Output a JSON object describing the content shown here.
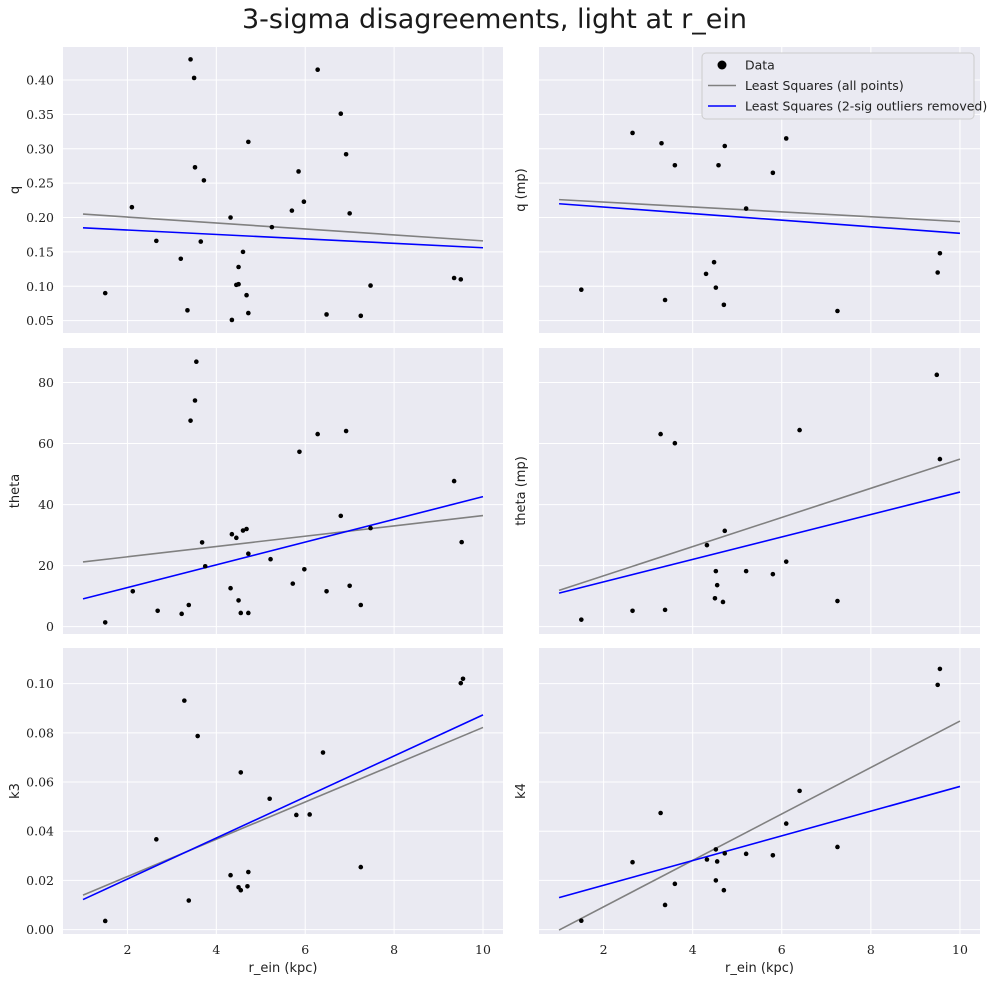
{
  "figure": {
    "title": "3-sigma disagreements, light at r_ein"
  },
  "legend": {
    "entries": [
      {
        "label": "Data",
        "kind": "marker",
        "color": "#000000"
      },
      {
        "label": "Least Squares (all points)",
        "kind": "line",
        "color": "#808080"
      },
      {
        "label": "Least Squares (2-sig outliers removed)",
        "kind": "line",
        "color": "#0000ff"
      }
    ],
    "position": "top-right"
  },
  "colors": {
    "plot_bg": "#eaeaf2",
    "grid": "#ffffff",
    "fit_all": "#808080",
    "fit_clean": "#0000ff",
    "points": "#000000"
  },
  "chart_data": [
    {
      "type": "scatter",
      "ylabel": "q",
      "xlabel": "",
      "grid": true,
      "xlim": [
        0.55,
        10.45
      ],
      "ylim": [
        0.032,
        0.448
      ],
      "xticks": [
        2,
        4,
        6,
        8,
        10
      ],
      "show_xticklabels": false,
      "yticks": [
        0.05,
        0.1,
        0.15,
        0.2,
        0.25,
        0.3,
        0.35,
        0.4
      ],
      "ytick_decimals": 2,
      "show_yticklabels": true,
      "points": [
        [
          1.5,
          0.09
        ],
        [
          2.1,
          0.215
        ],
        [
          2.65,
          0.166
        ],
        [
          3.2,
          0.14
        ],
        [
          3.35,
          0.065
        ],
        [
          3.42,
          0.43
        ],
        [
          3.5,
          0.403
        ],
        [
          3.52,
          0.273
        ],
        [
          3.65,
          0.165
        ],
        [
          3.72,
          0.254
        ],
        [
          4.32,
          0.2
        ],
        [
          4.35,
          0.051
        ],
        [
          4.45,
          0.102
        ],
        [
          4.5,
          0.103
        ],
        [
          4.5,
          0.128
        ],
        [
          4.6,
          0.15
        ],
        [
          4.68,
          0.087
        ],
        [
          4.72,
          0.061
        ],
        [
          4.72,
          0.31
        ],
        [
          5.25,
          0.186
        ],
        [
          5.7,
          0.21
        ],
        [
          5.85,
          0.267
        ],
        [
          5.97,
          0.223
        ],
        [
          6.28,
          0.415
        ],
        [
          6.48,
          0.059
        ],
        [
          6.8,
          0.351
        ],
        [
          6.92,
          0.292
        ],
        [
          7.0,
          0.206
        ],
        [
          7.25,
          0.057
        ],
        [
          7.47,
          0.101
        ],
        [
          9.35,
          0.112
        ],
        [
          9.5,
          0.11
        ]
      ],
      "fit_all": [
        [
          1.0,
          0.205
        ],
        [
          10.0,
          0.166
        ]
      ],
      "fit_clean": [
        [
          1.0,
          0.185
        ],
        [
          10.0,
          0.156
        ]
      ]
    },
    {
      "type": "scatter",
      "ylabel": "q (mp)",
      "xlabel": "",
      "grid": true,
      "xlim": [
        0.55,
        10.45
      ],
      "ylim": [
        0.032,
        0.448
      ],
      "xticks": [
        2,
        4,
        6,
        8,
        10
      ],
      "show_xticklabels": false,
      "yticks": [
        0.05,
        0.1,
        0.15,
        0.2,
        0.25,
        0.3,
        0.35,
        0.4
      ],
      "ytick_decimals": 2,
      "show_yticklabels": false,
      "points": [
        [
          1.5,
          0.095
        ],
        [
          2.65,
          0.323
        ],
        [
          3.3,
          0.308
        ],
        [
          3.38,
          0.08
        ],
        [
          3.6,
          0.276
        ],
        [
          4.3,
          0.118
        ],
        [
          4.48,
          0.135
        ],
        [
          4.52,
          0.098
        ],
        [
          4.58,
          0.276
        ],
        [
          4.7,
          0.073
        ],
        [
          4.72,
          0.304
        ],
        [
          5.2,
          0.213
        ],
        [
          5.8,
          0.265
        ],
        [
          6.1,
          0.315
        ],
        [
          7.25,
          0.064
        ],
        [
          9.5,
          0.12
        ],
        [
          9.55,
          0.148
        ]
      ],
      "fit_all": [
        [
          1.0,
          0.226
        ],
        [
          10.0,
          0.194
        ]
      ],
      "fit_clean": [
        [
          1.0,
          0.22
        ],
        [
          10.0,
          0.177
        ]
      ],
      "show_legend": true
    },
    {
      "type": "scatter",
      "ylabel": "theta",
      "xlabel": "",
      "grid": true,
      "xlim": [
        0.55,
        10.45
      ],
      "ylim": [
        -2.4,
        91.3
      ],
      "xticks": [
        2,
        4,
        6,
        8,
        10
      ],
      "show_xticklabels": false,
      "yticks": [
        0,
        20,
        40,
        60,
        80
      ],
      "ytick_decimals": 0,
      "show_yticklabels": true,
      "points": [
        [
          1.5,
          1.4
        ],
        [
          2.12,
          11.6
        ],
        [
          2.68,
          5.2
        ],
        [
          3.22,
          4.2
        ],
        [
          3.38,
          7.1
        ],
        [
          3.42,
          67.5
        ],
        [
          3.52,
          74.1
        ],
        [
          3.55,
          86.8
        ],
        [
          3.68,
          27.6
        ],
        [
          3.75,
          19.8
        ],
        [
          4.32,
          12.6
        ],
        [
          4.35,
          30.3
        ],
        [
          4.45,
          29.1
        ],
        [
          4.5,
          8.6
        ],
        [
          4.55,
          4.5
        ],
        [
          4.6,
          31.5
        ],
        [
          4.68,
          32.0
        ],
        [
          4.72,
          4.5
        ],
        [
          4.72,
          23.9
        ],
        [
          5.22,
          22.1
        ],
        [
          5.72,
          14.1
        ],
        [
          5.87,
          57.3
        ],
        [
          5.98,
          18.8
        ],
        [
          6.28,
          63.1
        ],
        [
          6.48,
          11.6
        ],
        [
          6.8,
          36.3
        ],
        [
          6.92,
          64.1
        ],
        [
          7.0,
          13.4
        ],
        [
          7.25,
          7.1
        ],
        [
          7.47,
          32.3
        ],
        [
          9.35,
          47.7
        ],
        [
          9.52,
          27.7
        ]
      ],
      "fit_all": [
        [
          1.0,
          21.2
        ],
        [
          10.0,
          36.4
        ]
      ],
      "fit_clean": [
        [
          1.0,
          9.1
        ],
        [
          10.0,
          42.6
        ]
      ]
    },
    {
      "type": "scatter",
      "ylabel": "theta (mp)",
      "xlabel": "",
      "grid": true,
      "xlim": [
        0.55,
        10.45
      ],
      "ylim": [
        -2.4,
        91.3
      ],
      "xticks": [
        2,
        4,
        6,
        8,
        10
      ],
      "show_xticklabels": false,
      "yticks": [
        0,
        20,
        40,
        60,
        80
      ],
      "ytick_decimals": 0,
      "show_yticklabels": false,
      "points": [
        [
          1.5,
          2.3
        ],
        [
          2.65,
          5.2
        ],
        [
          3.28,
          63.1
        ],
        [
          3.38,
          5.5
        ],
        [
          3.6,
          60.1
        ],
        [
          4.32,
          26.7
        ],
        [
          4.5,
          9.3
        ],
        [
          4.52,
          18.2
        ],
        [
          4.55,
          13.6
        ],
        [
          4.68,
          8.1
        ],
        [
          4.72,
          31.4
        ],
        [
          5.2,
          18.2
        ],
        [
          5.8,
          17.2
        ],
        [
          6.1,
          21.3
        ],
        [
          6.4,
          64.4
        ],
        [
          7.25,
          8.4
        ],
        [
          9.48,
          82.5
        ],
        [
          9.55,
          54.9
        ]
      ],
      "fit_all": [
        [
          1.0,
          11.9
        ],
        [
          10.0,
          54.9
        ]
      ],
      "fit_clean": [
        [
          1.0,
          11.0
        ],
        [
          10.0,
          44.1
        ]
      ]
    },
    {
      "type": "scatter",
      "ylabel": "k3",
      "xlabel": "r_ein (kpc)",
      "grid": true,
      "xlim": [
        0.55,
        10.45
      ],
      "ylim": [
        -0.0018,
        0.1145
      ],
      "xticks": [
        2,
        4,
        6,
        8,
        10
      ],
      "show_xticklabels": true,
      "yticks": [
        0.0,
        0.02,
        0.04,
        0.06,
        0.08,
        0.1
      ],
      "ytick_decimals": 2,
      "show_yticklabels": true,
      "points": [
        [
          1.5,
          0.0035
        ],
        [
          2.65,
          0.0367
        ],
        [
          3.28,
          0.0931
        ],
        [
          3.38,
          0.0118
        ],
        [
          3.58,
          0.0787
        ],
        [
          4.32,
          0.0221
        ],
        [
          4.5,
          0.0172
        ],
        [
          4.55,
          0.016
        ],
        [
          4.55,
          0.0639
        ],
        [
          4.7,
          0.0176
        ],
        [
          4.72,
          0.0234
        ],
        [
          5.2,
          0.0532
        ],
        [
          5.8,
          0.0466
        ],
        [
          6.1,
          0.0468
        ],
        [
          6.4,
          0.072
        ],
        [
          7.25,
          0.0254
        ],
        [
          9.5,
          0.1002
        ],
        [
          9.55,
          0.102
        ]
      ],
      "fit_all": [
        [
          1.0,
          0.014
        ],
        [
          10.0,
          0.0822
        ]
      ],
      "fit_clean": [
        [
          1.0,
          0.0122
        ],
        [
          10.0,
          0.0873
        ]
      ]
    },
    {
      "type": "scatter",
      "ylabel": "k4",
      "xlabel": "r_ein (kpc)",
      "grid": true,
      "xlim": [
        0.55,
        10.45
      ],
      "ylim": [
        -0.0018,
        0.1145
      ],
      "xticks": [
        2,
        4,
        6,
        8,
        10
      ],
      "show_xticklabels": true,
      "yticks": [
        0.0,
        0.02,
        0.04,
        0.06,
        0.08,
        0.1
      ],
      "ytick_decimals": 2,
      "show_yticklabels": false,
      "points": [
        [
          1.5,
          0.0036
        ],
        [
          2.65,
          0.0274
        ],
        [
          3.28,
          0.0474
        ],
        [
          3.38,
          0.01
        ],
        [
          3.6,
          0.0186
        ],
        [
          4.32,
          0.0285
        ],
        [
          4.52,
          0.02
        ],
        [
          4.52,
          0.0326
        ],
        [
          4.55,
          0.0277
        ],
        [
          4.7,
          0.016
        ],
        [
          4.72,
          0.031
        ],
        [
          5.2,
          0.0308
        ],
        [
          5.8,
          0.0302
        ],
        [
          6.1,
          0.0431
        ],
        [
          6.4,
          0.0564
        ],
        [
          7.25,
          0.0336
        ],
        [
          9.5,
          0.0995
        ],
        [
          9.55,
          0.106
        ]
      ],
      "fit_all": [
        [
          1.0,
          -0.0002
        ],
        [
          10.0,
          0.0848
        ]
      ],
      "fit_clean": [
        [
          1.0,
          0.013
        ],
        [
          10.0,
          0.0582
        ]
      ]
    }
  ]
}
